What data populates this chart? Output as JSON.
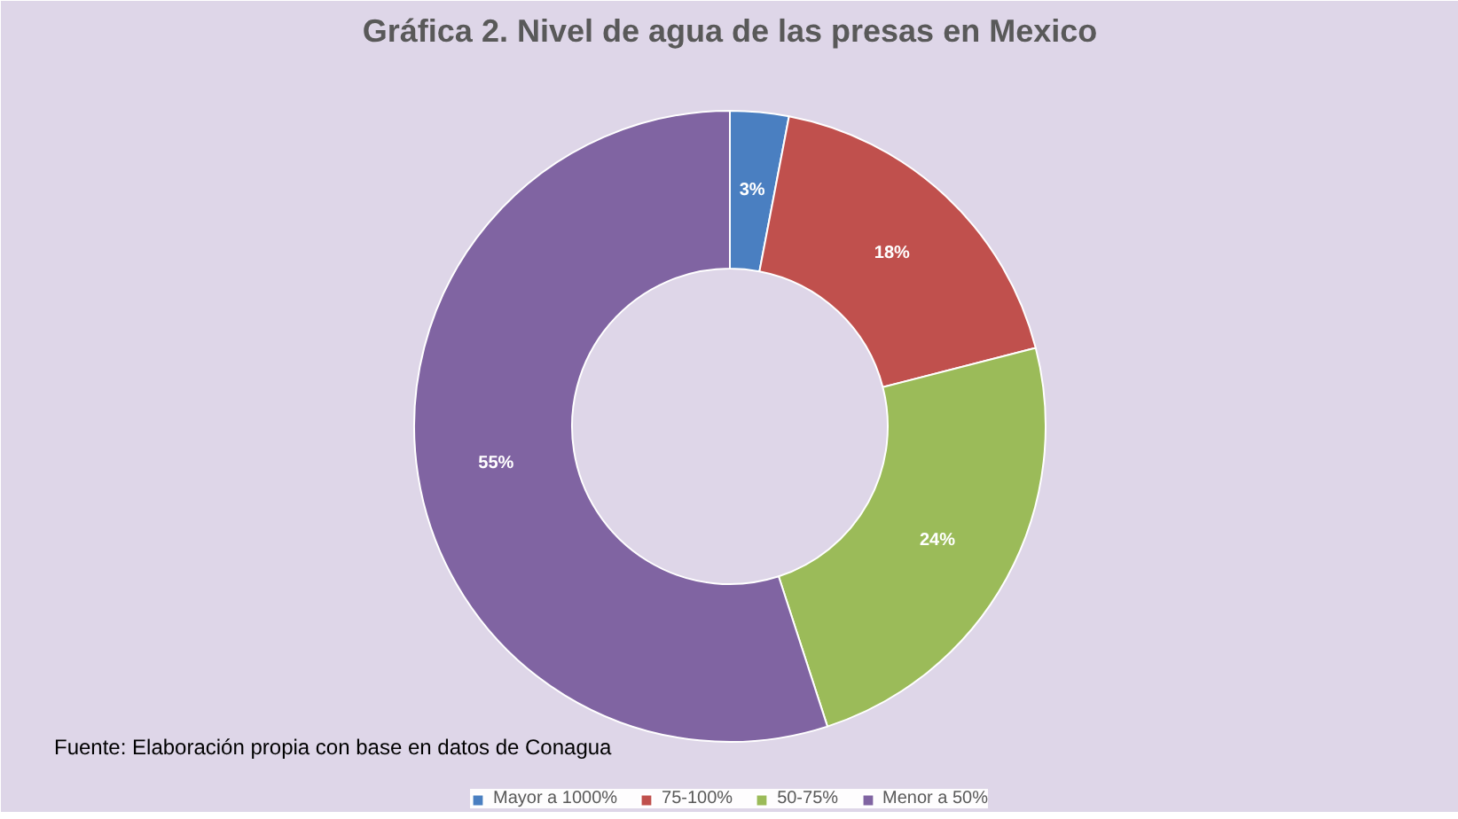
{
  "chart_data": {
    "type": "donut",
    "title": "Gráfica 2. Nivel de agua de las presas en Mexico",
    "categories": [
      "Mayor a 1000%",
      "75-100%",
      "50-75%",
      "Menor a 50%"
    ],
    "values": [
      3,
      18,
      24,
      55
    ],
    "colors": [
      "#4a7fc1",
      "#c0504d",
      "#9bbb59",
      "#8064a2"
    ],
    "value_labels": [
      "3%",
      "18%",
      "24%",
      "55%"
    ],
    "legend": "bottom",
    "annotations": [
      "Fuente: Elaboración propia con base en datos de Conagua"
    ]
  }
}
